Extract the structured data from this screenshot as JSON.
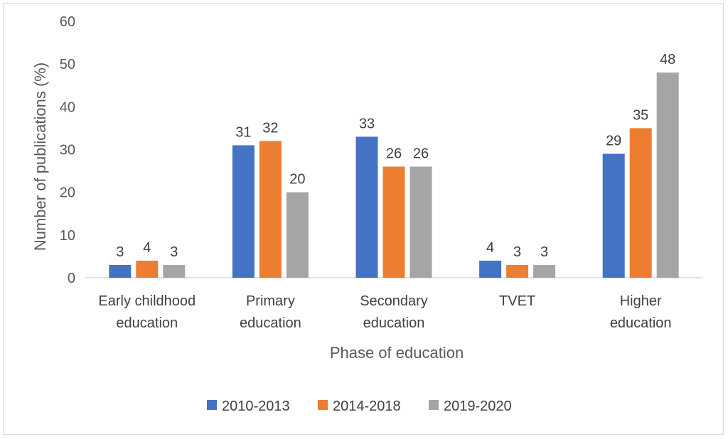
{
  "chart_data": {
    "type": "bar",
    "title": "",
    "xlabel": "Phase of education",
    "ylabel": "Number of publications (%)",
    "ylim": [
      0,
      60
    ],
    "yticks": [
      0,
      10,
      20,
      30,
      40,
      50,
      60
    ],
    "grid": false,
    "legend_position": "bottom",
    "categories": [
      [
        "Early childhood",
        "education"
      ],
      [
        "Primary",
        "education"
      ],
      [
        "Secondary",
        "education"
      ],
      [
        "TVET"
      ],
      [
        "Higher",
        "education"
      ]
    ],
    "series": [
      {
        "name": "2010-2013",
        "color": "#4472c4",
        "values": [
          3,
          31,
          33,
          4,
          29
        ]
      },
      {
        "name": "2014-2018",
        "color": "#ed7d31",
        "values": [
          4,
          32,
          26,
          3,
          35
        ]
      },
      {
        "name": "2019-2020",
        "color": "#a5a5a5",
        "values": [
          3,
          20,
          26,
          3,
          48
        ]
      }
    ]
  }
}
